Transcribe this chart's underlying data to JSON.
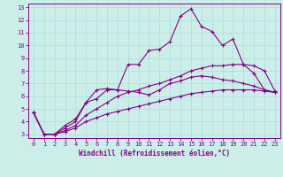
{
  "xlabel": "Windchill (Refroidissement éolien,°C)",
  "bg_color": "#cceee8",
  "line_color": "#880088",
  "grid_color": "#aadddd",
  "spine_color": "#880088",
  "xlim": [
    -0.5,
    23.5
  ],
  "ylim": [
    2.7,
    13.3
  ],
  "xticks": [
    0,
    1,
    2,
    3,
    4,
    5,
    6,
    7,
    8,
    9,
    10,
    11,
    12,
    13,
    14,
    15,
    16,
    17,
    18,
    19,
    20,
    21,
    22,
    23
  ],
  "yticks": [
    3,
    4,
    5,
    6,
    7,
    8,
    9,
    10,
    11,
    12,
    13
  ],
  "line1_x": [
    0,
    1,
    2,
    3,
    4,
    5,
    6,
    7,
    8,
    9,
    10,
    11,
    12,
    13,
    14,
    15,
    16,
    17,
    18,
    19,
    20,
    21,
    22,
    23
  ],
  "line1_y": [
    4.7,
    3.0,
    3.0,
    3.7,
    4.2,
    5.5,
    5.8,
    6.5,
    6.5,
    6.4,
    6.3,
    6.1,
    6.5,
    7.0,
    7.2,
    7.5,
    7.6,
    7.5,
    7.3,
    7.2,
    7.0,
    6.8,
    6.5,
    6.3
  ],
  "line2_x": [
    0,
    1,
    2,
    3,
    4,
    5,
    6,
    7,
    8,
    9,
    10,
    11,
    12,
    13,
    14,
    15,
    16,
    17,
    18,
    19,
    20,
    21,
    22,
    23
  ],
  "line2_y": [
    4.7,
    3.0,
    3.0,
    3.5,
    4.0,
    5.5,
    6.5,
    6.6,
    6.5,
    8.5,
    8.5,
    9.6,
    9.7,
    10.3,
    12.3,
    12.9,
    11.5,
    11.1,
    10.0,
    10.5,
    8.5,
    7.8,
    6.5,
    6.3
  ],
  "line3_x": [
    0,
    1,
    2,
    3,
    4,
    5,
    6,
    7,
    8,
    9,
    10,
    11,
    12,
    13,
    14,
    15,
    16,
    17,
    18,
    19,
    20,
    21,
    22,
    23
  ],
  "line3_y": [
    4.7,
    3.0,
    3.0,
    3.3,
    3.7,
    4.5,
    5.0,
    5.5,
    6.0,
    6.3,
    6.5,
    6.8,
    7.0,
    7.3,
    7.6,
    8.0,
    8.2,
    8.4,
    8.4,
    8.5,
    8.5,
    8.4,
    8.0,
    6.4
  ],
  "line4_x": [
    0,
    1,
    2,
    3,
    4,
    5,
    6,
    7,
    8,
    9,
    10,
    11,
    12,
    13,
    14,
    15,
    16,
    17,
    18,
    19,
    20,
    21,
    22,
    23
  ],
  "line4_y": [
    4.7,
    3.0,
    3.0,
    3.2,
    3.5,
    4.0,
    4.3,
    4.6,
    4.8,
    5.0,
    5.2,
    5.4,
    5.6,
    5.8,
    6.0,
    6.2,
    6.3,
    6.4,
    6.5,
    6.5,
    6.5,
    6.5,
    6.4,
    6.3
  ],
  "tick_fontsize": 5,
  "xlabel_fontsize": 5.5
}
